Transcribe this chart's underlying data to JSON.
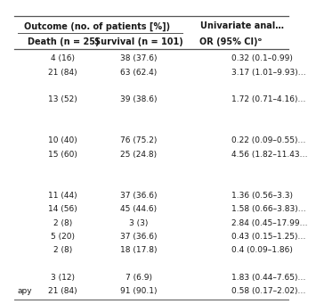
{
  "header1_left": "Outcome (no. of patients [%])",
  "header1_right": "Univariate anal…",
  "col1_header": "Death (n = 25)",
  "col2_header": "Survival (n = 101)",
  "col3_header": "OR (95% CI)ᵒ",
  "rows": [
    [
      "4 (16)",
      "38 (37.6)",
      "0.32 (0.1–0.99)"
    ],
    [
      "21 (84)",
      "63 (62.4)",
      "3.17 (1.01–9.93)…"
    ],
    [
      "",
      "",
      ""
    ],
    [
      "13 (52)",
      "39 (38.6)",
      "1.72 (0.71–4.16)…"
    ],
    [
      "",
      "",
      ""
    ],
    [
      "",
      "",
      ""
    ],
    [
      "10 (40)",
      "76 (75.2)",
      "0.22 (0.09–0.55)…"
    ],
    [
      "15 (60)",
      "25 (24.8)",
      "4.56 (1.82–11.43…"
    ],
    [
      "",
      "",
      ""
    ],
    [
      "",
      "",
      ""
    ],
    [
      "11 (44)",
      "37 (36.6)",
      "1.36 (0.56–3.3)"
    ],
    [
      "14 (56)",
      "45 (44.6)",
      "1.58 (0.66–3.83)…"
    ],
    [
      "2 (8)",
      "3 (3)",
      "2.84 (0.45–17.99…"
    ],
    [
      "5 (20)",
      "37 (36.6)",
      "0.43 (0.15–1.25)…"
    ],
    [
      "2 (8)",
      "18 (17.8)",
      "0.4 (0.09–1.86)"
    ],
    [
      "",
      "",
      ""
    ],
    [
      "3 (12)",
      "7 (6.9)",
      "1.83 (0.44–7.65)…"
    ],
    [
      "apy 21 (84)",
      "91 (90.1)",
      "0.58 (0.17–2.02)…"
    ]
  ],
  "text_color": "#1a1a1a",
  "line_color": "#555555",
  "font_size": 6.5,
  "header_font_size": 7.0,
  "bg_color": "white"
}
